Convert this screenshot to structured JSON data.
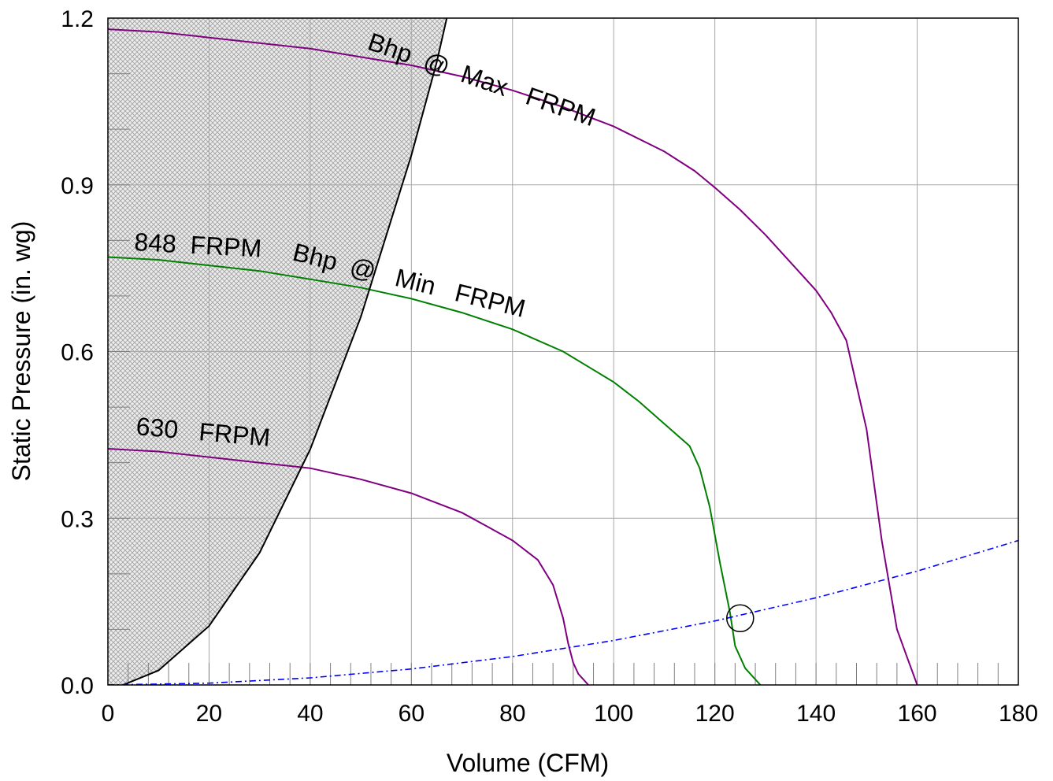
{
  "chart_data": {
    "type": "line",
    "title": "",
    "xlabel": "Volume (CFM)",
    "ylabel": "Static Pressure (in. wg)",
    "xlim": [
      0,
      180
    ],
    "ylim": [
      0,
      1.2
    ],
    "x_ticks": [
      0,
      20,
      40,
      60,
      80,
      100,
      120,
      140,
      160,
      180
    ],
    "y_ticks": [
      0.0,
      0.3,
      0.6,
      0.9,
      1.2
    ],
    "x_tick_labels": [
      "0",
      "20",
      "40",
      "60",
      "80",
      "100",
      "120",
      "140",
      "160",
      "180"
    ],
    "y_tick_labels": [
      "0.0",
      "0.3",
      "0.6",
      "0.9",
      "1.2"
    ],
    "grid": true,
    "shaded_region": {
      "description": "hatched stall region left of surge line",
      "color": "#c8c8c8"
    },
    "series": [
      {
        "name": "Bhp @ Max FRPM",
        "label_text": "Bhp  @  Max   FRPM",
        "color": "#800080",
        "x": [
          0,
          10,
          20,
          30,
          40,
          50,
          60,
          70,
          80,
          90,
          100,
          110,
          116,
          120,
          125,
          130,
          135,
          140,
          143,
          146,
          150,
          153,
          156,
          158,
          160
        ],
        "y": [
          1.18,
          1.175,
          1.165,
          1.155,
          1.145,
          1.13,
          1.115,
          1.095,
          1.07,
          1.04,
          1.005,
          0.96,
          0.925,
          0.895,
          0.855,
          0.81,
          0.76,
          0.71,
          0.67,
          0.62,
          0.46,
          0.26,
          0.1,
          0.05,
          0.0
        ]
      },
      {
        "name": "848 FRPM",
        "label_text": "848  FRPM",
        "color": "#800080",
        "x": [],
        "y": []
      },
      {
        "name": "Bhp @ Min FRPM",
        "label_text": "Bhp  @   Min   FRPM",
        "color": "#008000",
        "x": [
          0,
          10,
          20,
          30,
          40,
          50,
          60,
          70,
          80,
          90,
          100,
          105,
          110,
          115,
          117,
          119,
          121,
          123,
          124,
          126,
          129
        ],
        "y": [
          0.77,
          0.765,
          0.755,
          0.745,
          0.73,
          0.715,
          0.695,
          0.67,
          0.64,
          0.6,
          0.545,
          0.51,
          0.47,
          0.43,
          0.39,
          0.32,
          0.22,
          0.13,
          0.07,
          0.03,
          0.0
        ]
      },
      {
        "name": "630 FRPM",
        "label_text": "630   FRPM",
        "color": "#800080",
        "x": [
          0,
          10,
          20,
          30,
          40,
          50,
          60,
          70,
          75,
          80,
          85,
          88,
          90,
          91,
          92,
          93,
          95
        ],
        "y": [
          0.425,
          0.42,
          0.41,
          0.4,
          0.39,
          0.37,
          0.345,
          0.31,
          0.285,
          0.26,
          0.225,
          0.18,
          0.12,
          0.075,
          0.04,
          0.02,
          0.0
        ]
      },
      {
        "name": "Surge Line",
        "color": "#000000",
        "x": [
          3,
          10,
          20,
          30,
          40,
          50,
          60,
          65,
          68
        ],
        "y": [
          0.0,
          0.026,
          0.106,
          0.238,
          0.424,
          0.662,
          0.953,
          1.12,
          1.24
        ]
      },
      {
        "name": "System Curve",
        "color": "#0000ff",
        "dash": "dash-dot",
        "x": [
          0,
          20,
          40,
          60,
          80,
          100,
          120,
          140,
          160,
          180
        ],
        "y": [
          0.0,
          0.0032,
          0.0128,
          0.0288,
          0.0512,
          0.08,
          0.1152,
          0.1568,
          0.2048,
          0.26
        ]
      }
    ],
    "operating_point": {
      "x": 125,
      "y": 0.12
    }
  }
}
